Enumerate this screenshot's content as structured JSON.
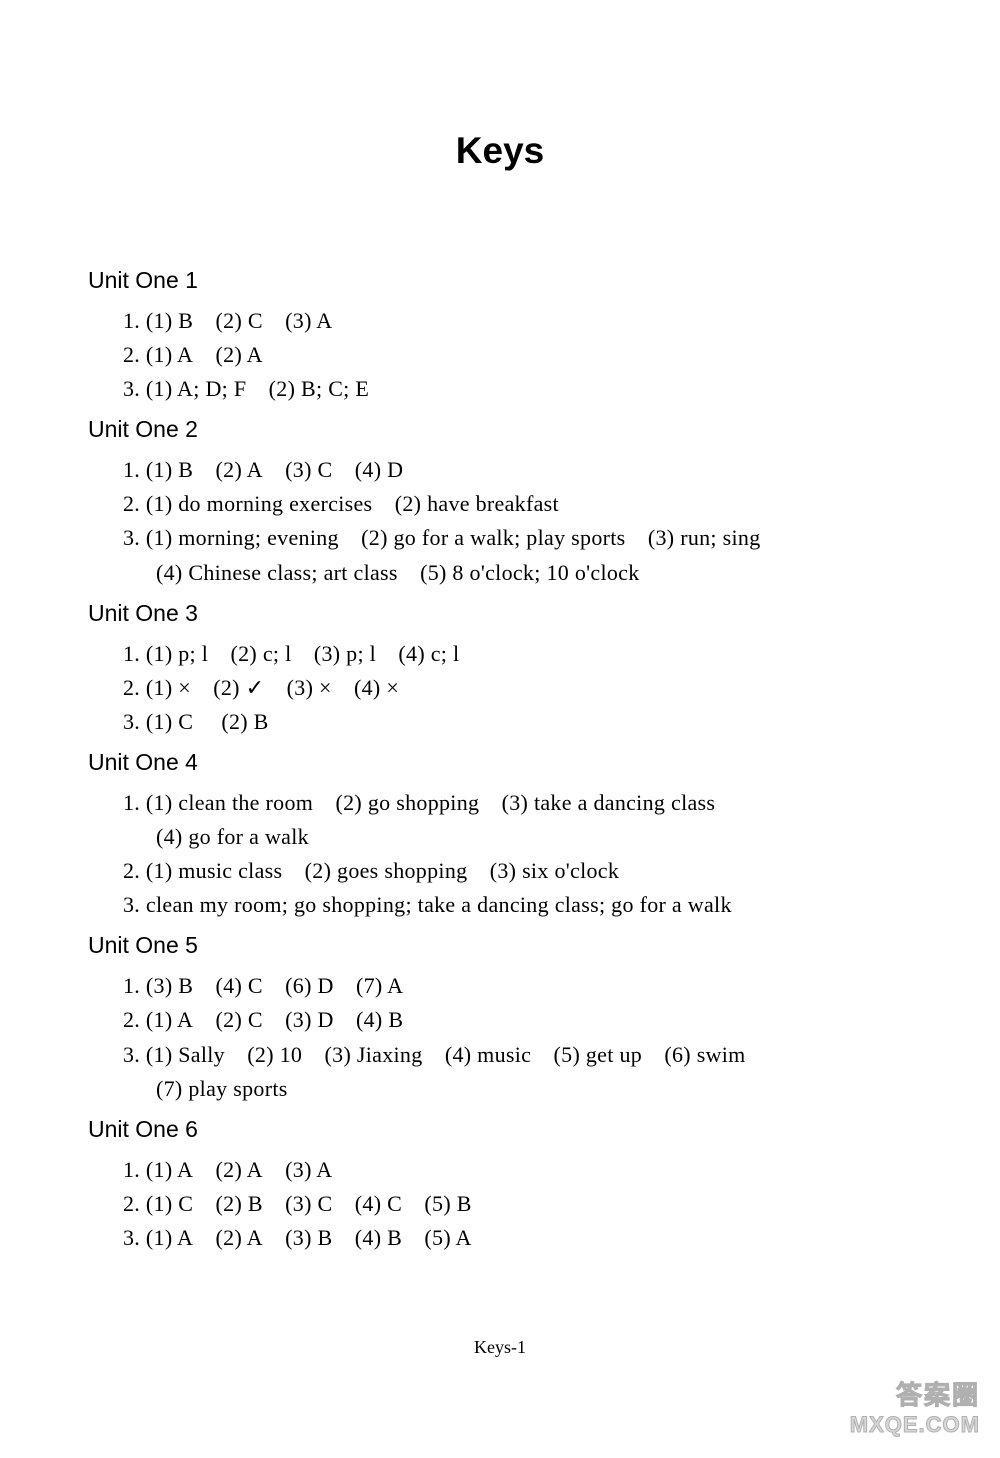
{
  "title": "Keys",
  "page_footer": "Keys-1",
  "watermark": {
    "line1": "答案圈",
    "line2": "MXQE.COM"
  },
  "units": [
    {
      "heading": "Unit One 1",
      "lines": [
        {
          "text": "1. (1) B (2) C (3) A",
          "indent": false
        },
        {
          "text": "2. (1) A (2) A",
          "indent": false
        },
        {
          "text": "3. (1) A; D; F (2) B; C; E",
          "indent": false
        }
      ]
    },
    {
      "heading": "Unit One 2",
      "lines": [
        {
          "text": "1. (1) B (2) A (3) C (4) D",
          "indent": false
        },
        {
          "text": "2. (1) do morning exercises (2) have breakfast",
          "indent": false
        },
        {
          "text": "3. (1) morning; evening (2) go for a walk; play sports (3) run; sing",
          "indent": false
        },
        {
          "text": "(4) Chinese class; art class (5) 8 o'clock; 10 o'clock",
          "indent": true
        }
      ]
    },
    {
      "heading": "Unit One 3",
      "lines": [
        {
          "text": "1. (1) p; l (2) c; l (3) p; l (4) c; l",
          "indent": false
        },
        {
          "text": "2. (1) × (2) ✓ (3) × (4) ×",
          "indent": false
        },
        {
          "text": "3. (1) C  (2) B",
          "indent": false
        }
      ]
    },
    {
      "heading": "Unit One 4",
      "lines": [
        {
          "text": "1. (1) clean the room (2) go shopping (3) take a dancing class",
          "indent": false
        },
        {
          "text": "(4) go for a walk",
          "indent": true
        },
        {
          "text": "2. (1) music class (2) goes shopping (3) six o'clock",
          "indent": false
        },
        {
          "text": "3. clean my room; go shopping; take a dancing class; go for a walk",
          "indent": false
        }
      ]
    },
    {
      "heading": "Unit One 5",
      "lines": [
        {
          "text": "1. (3) B (4) C (6) D (7) A",
          "indent": false
        },
        {
          "text": "2. (1) A (2) C (3) D (4) B",
          "indent": false
        },
        {
          "text": "3. (1) Sally (2) 10 (3) Jiaxing (4) music (5) get up (6) swim",
          "indent": false
        },
        {
          "text": "(7) play sports",
          "indent": true
        }
      ]
    },
    {
      "heading": "Unit One 6",
      "lines": [
        {
          "text": "1. (1) A (2) A (3) A",
          "indent": false
        },
        {
          "text": "2. (1) C (2) B (3) C (4) C (5) B",
          "indent": false
        },
        {
          "text": "3. (1) A (2) A (3) B (4) B (5) A",
          "indent": false
        }
      ]
    }
  ]
}
